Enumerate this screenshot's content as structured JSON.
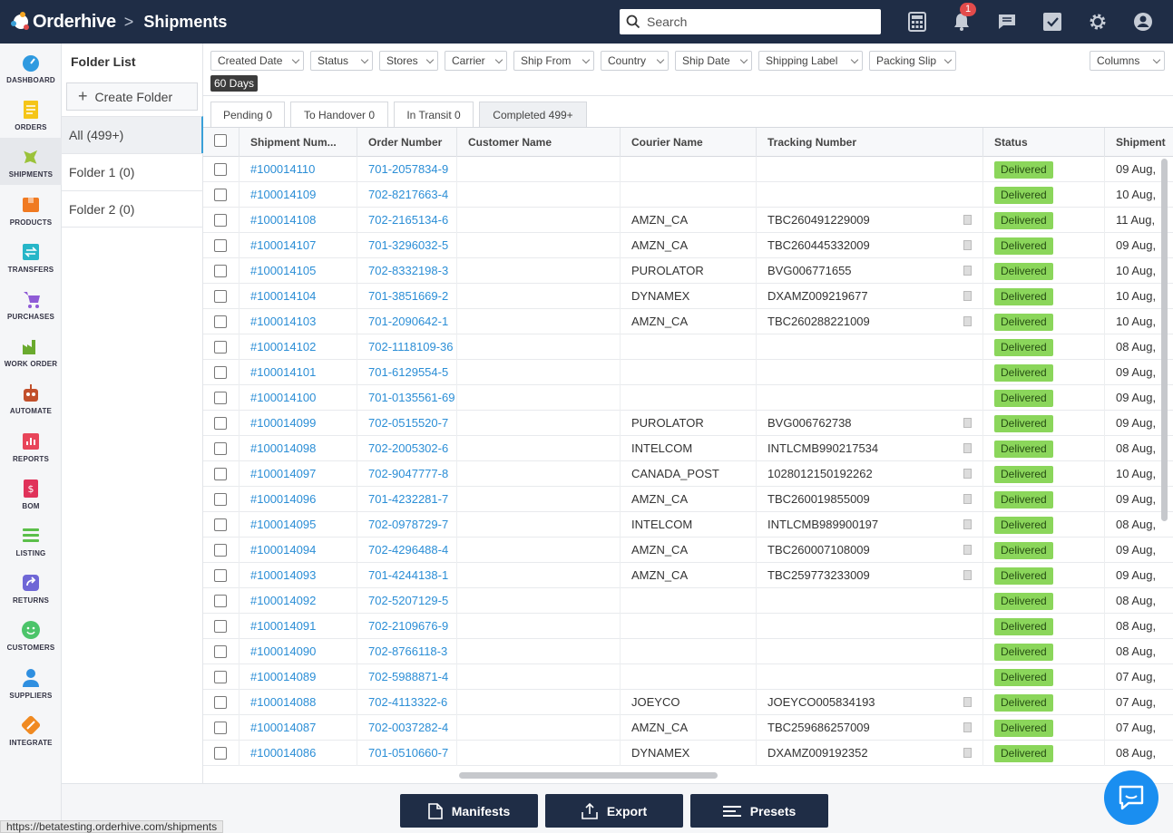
{
  "app": {
    "name": "Orderhive",
    "page_title": "Shipments",
    "separator": ">"
  },
  "search": {
    "placeholder": "Search"
  },
  "notifications": {
    "count": "1"
  },
  "sidebar": {
    "items": [
      {
        "label": "DASHBOARD",
        "icon": "dashboard-icon",
        "color": "#2f9ae0"
      },
      {
        "label": "ORDERS",
        "icon": "orders-icon",
        "color": "#f5c518"
      },
      {
        "label": "SHIPMENTS",
        "icon": "shipments-icon",
        "color": "#9bc23a"
      },
      {
        "label": "PRODUCTS",
        "icon": "products-icon",
        "color": "#f07a22"
      },
      {
        "label": "TRANSFERS",
        "icon": "transfers-icon",
        "color": "#27b6c8"
      },
      {
        "label": "PURCHASES",
        "icon": "purchases-icon",
        "color": "#8f5bd6"
      },
      {
        "label": "WORK ORDER",
        "icon": "work-order-icon",
        "color": "#6aaa2e"
      },
      {
        "label": "AUTOMATE",
        "icon": "automate-icon",
        "color": "#c2502c"
      },
      {
        "label": "REPORTS",
        "icon": "reports-icon",
        "color": "#e8455a"
      },
      {
        "label": "BOM",
        "icon": "bom-icon",
        "color": "#e0325a"
      },
      {
        "label": "LISTING",
        "icon": "listing-icon",
        "color": "#5bbf4a"
      },
      {
        "label": "RETURNS",
        "icon": "returns-icon",
        "color": "#6f67d6"
      },
      {
        "label": "CUSTOMERS",
        "icon": "customers-icon",
        "color": "#4cc46a"
      },
      {
        "label": "SUPPLIERS",
        "icon": "suppliers-icon",
        "color": "#2f8fe0"
      },
      {
        "label": "INTEGRATE",
        "icon": "integrate-icon",
        "color": "#f08a22"
      }
    ]
  },
  "folders": {
    "title": "Folder List",
    "create_label": "Create Folder",
    "items": [
      {
        "label": "All (499+)"
      },
      {
        "label": "Folder 1 (0)"
      },
      {
        "label": "Folder 2 (0)"
      }
    ]
  },
  "filters": {
    "items": [
      "Created Date",
      "Status",
      "Stores",
      "Carrier",
      "Ship From",
      "Country",
      "Ship Date",
      "Shipping Label",
      "Packing Slip"
    ],
    "columns_label": "Columns",
    "active_chip": "60 Days"
  },
  "tabs": [
    {
      "label": "Pending 0"
    },
    {
      "label": "To Handover 0"
    },
    {
      "label": "In Transit 0"
    },
    {
      "label": "Completed 499+"
    }
  ],
  "table": {
    "headers": [
      "Shipment Num...",
      "Order Number",
      "Customer Name",
      "Courier Name",
      "Tracking Number",
      "Status",
      "Shipment"
    ],
    "rows": [
      {
        "shipment": "#100014110",
        "order": "701-2057834-9",
        "customer": "",
        "courier": "",
        "tracking": "",
        "status": "Delivered",
        "date": "09 Aug,"
      },
      {
        "shipment": "#100014109",
        "order": "702-8217663-4",
        "customer": "",
        "courier": "",
        "tracking": "",
        "status": "Delivered",
        "date": "10 Aug,"
      },
      {
        "shipment": "#100014108",
        "order": "702-2165134-6",
        "customer": "",
        "courier": "AMZN_CA",
        "tracking": "TBC260491229009",
        "status": "Delivered",
        "date": "11 Aug,"
      },
      {
        "shipment": "#100014107",
        "order": "701-3296032-5",
        "customer": "",
        "courier": "AMZN_CA",
        "tracking": "TBC260445332009",
        "status": "Delivered",
        "date": "09 Aug,"
      },
      {
        "shipment": "#100014105",
        "order": "702-8332198-3",
        "customer": "",
        "courier": "PUROLATOR",
        "tracking": "BVG006771655",
        "status": "Delivered",
        "date": "10 Aug,"
      },
      {
        "shipment": "#100014104",
        "order": "701-3851669-2",
        "customer": "",
        "courier": "DYNAMEX",
        "tracking": "DXAMZ009219677",
        "status": "Delivered",
        "date": "10 Aug,"
      },
      {
        "shipment": "#100014103",
        "order": "701-2090642-1",
        "customer": "",
        "courier": "AMZN_CA",
        "tracking": "TBC260288221009",
        "status": "Delivered",
        "date": "10 Aug,"
      },
      {
        "shipment": "#100014102",
        "order": "702-1118109-36",
        "customer": "",
        "courier": "",
        "tracking": "",
        "status": "Delivered",
        "date": "08 Aug,"
      },
      {
        "shipment": "#100014101",
        "order": "701-6129554-5",
        "customer": "",
        "courier": "",
        "tracking": "",
        "status": "Delivered",
        "date": "09 Aug,"
      },
      {
        "shipment": "#100014100",
        "order": "701-0135561-69",
        "customer": "",
        "courier": "",
        "tracking": "",
        "status": "Delivered",
        "date": "09 Aug,"
      },
      {
        "shipment": "#100014099",
        "order": "702-0515520-7",
        "customer": "",
        "courier": "PUROLATOR",
        "tracking": "BVG006762738",
        "status": "Delivered",
        "date": "09 Aug,"
      },
      {
        "shipment": "#100014098",
        "order": "702-2005302-6",
        "customer": "",
        "courier": "INTELCOM",
        "tracking": "INTLCMB990217534",
        "status": "Delivered",
        "date": "08 Aug,"
      },
      {
        "shipment": "#100014097",
        "order": "702-9047777-8",
        "customer": "",
        "courier": "CANADA_POST",
        "tracking": "1028012150192262",
        "status": "Delivered",
        "date": "10 Aug,"
      },
      {
        "shipment": "#100014096",
        "order": "701-4232281-7",
        "customer": "",
        "courier": "AMZN_CA",
        "tracking": "TBC260019855009",
        "status": "Delivered",
        "date": "09 Aug,"
      },
      {
        "shipment": "#100014095",
        "order": "702-0978729-7",
        "customer": "",
        "courier": "INTELCOM",
        "tracking": "INTLCMB989900197",
        "status": "Delivered",
        "date": "08 Aug,"
      },
      {
        "shipment": "#100014094",
        "order": "702-4296488-4",
        "customer": "",
        "courier": "AMZN_CA",
        "tracking": "TBC260007108009",
        "status": "Delivered",
        "date": "09 Aug,"
      },
      {
        "shipment": "#100014093",
        "order": "701-4244138-1",
        "customer": "",
        "courier": "AMZN_CA",
        "tracking": "TBC259773233009",
        "status": "Delivered",
        "date": "09 Aug,"
      },
      {
        "shipment": "#100014092",
        "order": "702-5207129-5",
        "customer": "",
        "courier": "",
        "tracking": "",
        "status": "Delivered",
        "date": "08 Aug,"
      },
      {
        "shipment": "#100014091",
        "order": "702-2109676-9",
        "customer": "",
        "courier": "",
        "tracking": "",
        "status": "Delivered",
        "date": "08 Aug,"
      },
      {
        "shipment": "#100014090",
        "order": "702-8766118-3",
        "customer": "",
        "courier": "",
        "tracking": "",
        "status": "Delivered",
        "date": "08 Aug,"
      },
      {
        "shipment": "#100014089",
        "order": "702-5988871-4",
        "customer": "",
        "courier": "",
        "tracking": "",
        "status": "Delivered",
        "date": "07 Aug,"
      },
      {
        "shipment": "#100014088",
        "order": "702-4113322-6",
        "customer": "",
        "courier": "JOEYCO",
        "tracking": "JOEYCO005834193",
        "status": "Delivered",
        "date": "07 Aug,"
      },
      {
        "shipment": "#100014087",
        "order": "702-0037282-4",
        "customer": "",
        "courier": "AMZN_CA",
        "tracking": "TBC259686257009",
        "status": "Delivered",
        "date": "07 Aug,"
      },
      {
        "shipment": "#100014086",
        "order": "701-0510660-7",
        "customer": "",
        "courier": "DYNAMEX",
        "tracking": "DXAMZ009192352",
        "status": "Delivered",
        "date": "08 Aug,"
      }
    ]
  },
  "actions": {
    "manifests": "Manifests",
    "export": "Export",
    "presets": "Presets"
  },
  "status_url": "https://betatesting.orderhive.com/shipments",
  "colors": {
    "navy": "#1f2d46",
    "link": "#2b8ed6",
    "delivered": "#8bd65b",
    "accent": "#3aa0d8"
  }
}
